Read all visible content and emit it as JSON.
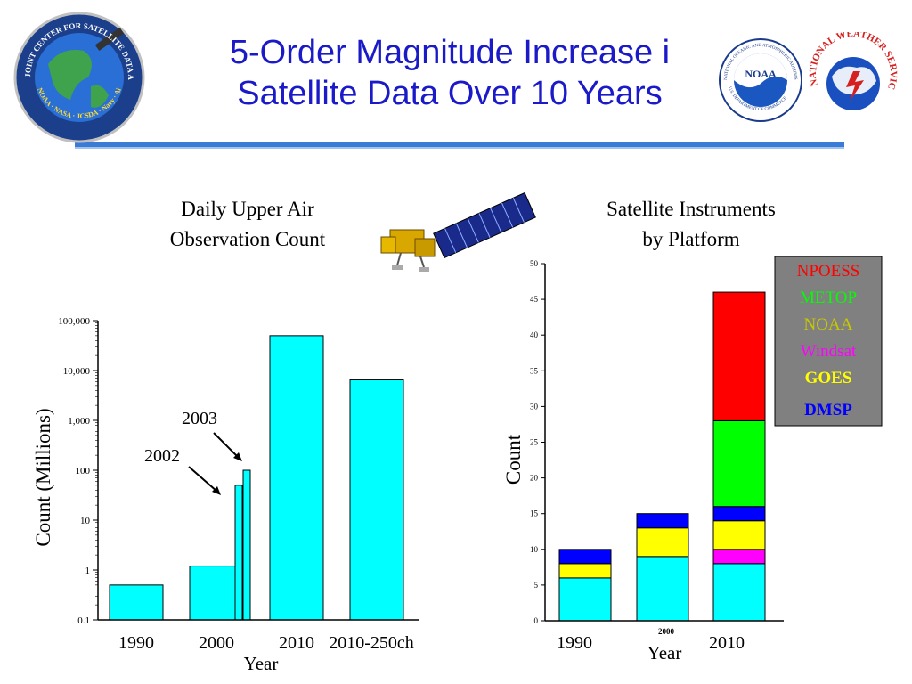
{
  "slide": {
    "title_line1": "5-Order Magnitude Increase i",
    "title_line2": "Satellite Data Over 10 Years"
  },
  "logos": [
    {
      "name": "jcsda-seal",
      "text": "JOINT CENTER FOR SATELLITE DATA ASSIMILATION",
      "sub": "NOAA · NASA · JCSDA · Navy · Air Force"
    },
    {
      "name": "noaa-seal",
      "text": "NATIONAL OCEANIC AND ATMOSPHERIC ADMINISTRATION",
      "center": "NOAA",
      "sub": "U.S. DEPARTMENT OF COMMERCE"
    },
    {
      "name": "nws-seal",
      "text": "NATIONAL WEATHER SERVICE"
    }
  ],
  "colors": {
    "title": "#1a1ac8",
    "bar": "#00ffff",
    "npoess": "#ff0000",
    "metop": "#00ff00",
    "noaa": "#c8c800",
    "windsat": "#ff00ff",
    "goes": "#ffff00",
    "dmsp": "#0000ff",
    "base": "#00ffff",
    "legend_bg": "#808080"
  },
  "chart_data": [
    {
      "type": "bar",
      "title": "Daily Upper Air Observation Count",
      "title_lines": [
        "Daily Upper Air",
        "Observation Count"
      ],
      "xlabel": "Year",
      "ylabel": "Count (Millions)",
      "yscale": "log",
      "ylim": [
        0.1,
        100000
      ],
      "yticks": [
        "0.1",
        "1",
        "10",
        "100",
        "1,000",
        "10,000",
        "100,000"
      ],
      "categories": [
        "1990",
        "2000",
        "2010",
        "2010-250ch"
      ],
      "values": [
        0.5,
        1.2,
        50000,
        6500
      ],
      "extra_bars": [
        {
          "label": "2002",
          "value": 50
        },
        {
          "label": "2003",
          "value": 100
        }
      ],
      "annotations": [
        "2003",
        "2002"
      ]
    },
    {
      "type": "bar",
      "stacked": true,
      "title": "Satellite Instruments by Platform",
      "title_lines": [
        "Satellite Instruments",
        "by Platform"
      ],
      "xlabel": "Year",
      "ylabel": "Count",
      "ylim": [
        0,
        50
      ],
      "yticks": [
        "0",
        "5",
        "10",
        "15",
        "20",
        "25",
        "30",
        "35",
        "40",
        "45",
        "50"
      ],
      "categories": [
        "1990",
        "2000",
        "2010"
      ],
      "series": [
        {
          "name": "",
          "color": "#00ffff",
          "values": [
            6,
            9,
            8
          ]
        },
        {
          "name": "Windsat",
          "color": "#ff00ff",
          "values": [
            0,
            0,
            2
          ]
        },
        {
          "name": "GOES",
          "color": "#ffff00",
          "values": [
            2,
            4,
            4
          ]
        },
        {
          "name": "DMSP",
          "color": "#0000ff",
          "values": [
            2,
            2,
            2
          ]
        },
        {
          "name": "METOP",
          "color": "#00ff00",
          "values": [
            0,
            0,
            12
          ]
        },
        {
          "name": "NPOESS",
          "color": "#ff0000",
          "values": [
            0,
            0,
            18
          ]
        }
      ],
      "legend": {
        "placement": "top-right",
        "entries": [
          {
            "label": "NPOESS",
            "color": "#ff0000"
          },
          {
            "label": "METOP",
            "color": "#00ff00"
          },
          {
            "label": "NOAA",
            "color": "#c8c800"
          },
          {
            "label": "Windsat",
            "color": "#ff00ff"
          },
          {
            "label": "GOES",
            "color": "#ffff00"
          },
          {
            "label": "DMSP",
            "color": "#0000ff"
          }
        ]
      }
    }
  ]
}
